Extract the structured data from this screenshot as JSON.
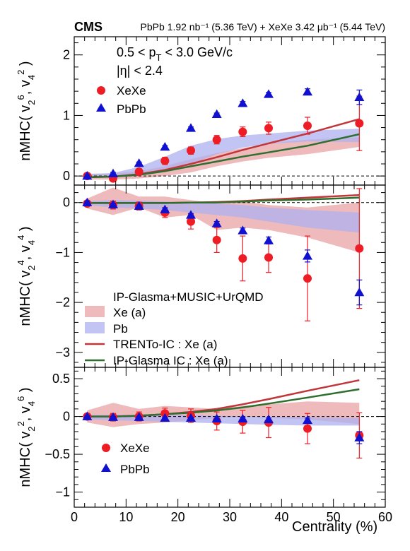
{
  "header": {
    "experiment": "CMS",
    "lumi": "PbPb 1.92 nb⁻¹ (5.36 TeV) + XeXe 3.42 μb⁻¹ (5.44 TeV)"
  },
  "colors": {
    "xexe_marker": "#ee1c24",
    "pbpb_marker": "#1010d0",
    "xe_band": "#e8a3a6",
    "pb_band": "#aeb0ef",
    "trento_line": "#c0363a",
    "glasma_line": "#2e6e2e"
  },
  "chart_data": [
    {
      "type": "scatter",
      "panel": "top",
      "ylabel": "nMHC( v₂⁶, v₄² )",
      "ylim": [
        -0.15,
        2.3
      ],
      "yticks": [
        0,
        1,
        2
      ],
      "annotations": [
        "0.5 < p_T < 3.0 GeV/c",
        "|η| < 2.4"
      ],
      "legend": [
        "XeXe",
        "PbPb"
      ],
      "series": [
        {
          "name": "XeXe",
          "marker": "circle",
          "x": [
            2.5,
            7.5,
            12.5,
            17.5,
            22.5,
            27.5,
            32.5,
            37.5,
            45,
            55
          ],
          "y": [
            0.0,
            -0.04,
            0.07,
            0.25,
            0.42,
            0.6,
            0.73,
            0.79,
            0.83,
            0.87
          ],
          "err": [
            0.03,
            0.04,
            0.05,
            0.06,
            0.06,
            0.07,
            0.08,
            0.1,
            0.14,
            0.45
          ]
        },
        {
          "name": "PbPb",
          "marker": "triangle",
          "x": [
            2.5,
            7.5,
            12.5,
            17.5,
            22.5,
            27.5,
            32.5,
            37.5,
            45,
            55
          ],
          "y": [
            0.0,
            0.04,
            0.21,
            0.48,
            0.79,
            1.02,
            1.2,
            1.35,
            1.39,
            1.3
          ],
          "err": [
            0.02,
            0.02,
            0.02,
            0.02,
            0.02,
            0.02,
            0.03,
            0.03,
            0.05,
            0.12
          ]
        },
        {
          "name": "Xe (a)",
          "kind": "band",
          "x": [
            2.5,
            7.5,
            12.5,
            17.5,
            22.5,
            27.5,
            32.5,
            37.5,
            45,
            55
          ],
          "lo": [
            -0.06,
            -0.06,
            -0.04,
            0.0,
            0.06,
            0.16,
            0.24,
            0.3,
            0.36,
            0.48
          ],
          "hi": [
            0.04,
            0.04,
            0.08,
            0.16,
            0.28,
            0.38,
            0.46,
            0.54,
            0.6,
            0.64
          ]
        },
        {
          "name": "Pb",
          "kind": "band",
          "x": [
            2.5,
            7.5,
            12.5,
            17.5,
            22.5,
            27.5,
            32.5,
            37.5,
            45,
            55
          ],
          "lo": [
            -0.02,
            -0.02,
            0.0,
            0.08,
            0.2,
            0.36,
            0.47,
            0.53,
            0.57,
            0.56
          ],
          "hi": [
            0.03,
            0.05,
            0.15,
            0.32,
            0.5,
            0.61,
            0.67,
            0.7,
            0.75,
            0.78
          ]
        },
        {
          "name": "TRENTo-IC : Xe (a)",
          "kind": "line",
          "x": [
            2.5,
            7.5,
            12.5,
            17.5,
            22.5,
            27.5,
            32.5,
            37.5,
            45,
            55
          ],
          "y": [
            -0.02,
            -0.01,
            0.03,
            0.1,
            0.2,
            0.31,
            0.43,
            0.54,
            0.7,
            0.94
          ]
        },
        {
          "name": "IP-Glasma IC : Xe (a)",
          "kind": "line",
          "x": [
            2.5,
            7.5,
            12.5,
            17.5,
            22.5,
            27.5,
            32.5,
            37.5,
            45,
            55
          ],
          "y": [
            -0.02,
            -0.01,
            0.02,
            0.08,
            0.16,
            0.24,
            0.32,
            0.39,
            0.5,
            0.69
          ]
        }
      ]
    },
    {
      "type": "scatter",
      "panel": "middle",
      "ylabel": "nMHC( v₂⁴, v₄⁴ )",
      "ylim": [
        -3.3,
        0.35
      ],
      "yticks": [
        -3,
        -2,
        -1,
        0
      ],
      "legend_header": "IP-Glasma+MUSIC+UrQMD",
      "legend": [
        "Xe (a)",
        "Pb",
        "TRENTo-IC : Xe (a)",
        "IP-Glasma IC : Xe (a)"
      ],
      "series": [
        {
          "name": "XeXe",
          "marker": "circle",
          "x": [
            2.5,
            7.5,
            12.5,
            17.5,
            22.5,
            27.5,
            32.5,
            37.5,
            45,
            55
          ],
          "y": [
            -0.02,
            -0.05,
            -0.07,
            -0.2,
            -0.38,
            -0.75,
            -1.12,
            -1.1,
            -1.52,
            -0.92
          ],
          "err": [
            0.05,
            0.08,
            0.08,
            0.1,
            0.15,
            0.25,
            0.45,
            0.3,
            0.85,
            1.2
          ]
        },
        {
          "name": "PbPb",
          "marker": "triangle",
          "x": [
            2.5,
            7.5,
            12.5,
            17.5,
            22.5,
            27.5,
            32.5,
            37.5,
            45,
            55
          ],
          "y": [
            0.0,
            -0.04,
            -0.07,
            -0.14,
            -0.25,
            -0.42,
            -0.56,
            -0.76,
            -1.07,
            -1.8
          ],
          "err": [
            0.02,
            0.02,
            0.02,
            0.03,
            0.03,
            0.04,
            0.05,
            0.07,
            0.12,
            0.25
          ]
        },
        {
          "name": "Xe (a)",
          "kind": "band",
          "x": [
            2.5,
            7.5,
            12.5,
            17.5,
            22.5,
            27.5,
            32.5,
            37.5,
            45,
            55
          ],
          "lo": [
            -0.12,
            -0.25,
            -0.1,
            -0.3,
            -0.25,
            -0.55,
            -0.5,
            -0.55,
            -0.7,
            -1.0
          ],
          "hi": [
            0.08,
            0.3,
            0.12,
            0.12,
            0.05,
            -0.02,
            0.02,
            -0.05,
            -0.1,
            0.0
          ]
        },
        {
          "name": "Pb",
          "kind": "band",
          "x": [
            2.5,
            7.5,
            12.5,
            17.5,
            22.5,
            27.5,
            32.5,
            37.5,
            45,
            55
          ],
          "lo": [
            -0.05,
            -0.1,
            -0.12,
            -0.15,
            -0.2,
            -0.25,
            -0.3,
            -0.38,
            -0.5,
            -0.6
          ],
          "hi": [
            0.03,
            0.05,
            0.04,
            0.02,
            0.0,
            -0.02,
            -0.05,
            -0.1,
            -0.15,
            -0.2
          ]
        },
        {
          "name": "TRENTo-IC : Xe (a)",
          "kind": "line",
          "x": [
            2.5,
            7.5,
            12.5,
            17.5,
            22.5,
            27.5,
            32.5,
            37.5,
            45,
            55
          ],
          "y": [
            -0.01,
            -0.01,
            -0.01,
            -0.01,
            0.0,
            0.01,
            0.03,
            0.06,
            0.1,
            0.15
          ]
        },
        {
          "name": "IP-Glasma IC : Xe (a)",
          "kind": "line",
          "x": [
            2.5,
            7.5,
            12.5,
            17.5,
            22.5,
            27.5,
            32.5,
            37.5,
            45,
            55
          ],
          "y": [
            -0.01,
            -0.01,
            -0.01,
            -0.01,
            0.0,
            0.0,
            0.02,
            0.04,
            0.06,
            0.1
          ]
        }
      ]
    },
    {
      "type": "scatter",
      "panel": "bottom",
      "ylabel": "nMHC( v₂², v₄⁶ )",
      "xlabel": "Centrality (%)",
      "xlim": [
        0,
        60
      ],
      "xticks": [
        0,
        10,
        20,
        30,
        40,
        50,
        60
      ],
      "ylim": [
        -1.2,
        0.65
      ],
      "yticks": [
        -1,
        -0.5,
        0,
        0.5
      ],
      "legend": [
        "XeXe",
        "PbPb"
      ],
      "series": [
        {
          "name": "XeXe",
          "marker": "circle",
          "x": [
            2.5,
            7.5,
            12.5,
            17.5,
            22.5,
            27.5,
            32.5,
            37.5,
            45,
            55
          ],
          "y": [
            0.0,
            -0.01,
            0.0,
            0.04,
            0.01,
            -0.06,
            -0.07,
            -0.08,
            -0.16,
            -0.25
          ],
          "err": [
            0.03,
            0.05,
            0.06,
            0.07,
            0.09,
            0.12,
            0.15,
            0.2,
            0.2,
            0.3
          ]
        },
        {
          "name": "PbPb",
          "marker": "triangle",
          "x": [
            2.5,
            7.5,
            12.5,
            17.5,
            22.5,
            27.5,
            32.5,
            37.5,
            45,
            55
          ],
          "y": [
            0.0,
            -0.01,
            -0.01,
            -0.02,
            -0.02,
            -0.03,
            -0.03,
            -0.04,
            -0.05,
            -0.28
          ],
          "err": [
            0.01,
            0.01,
            0.01,
            0.01,
            0.01,
            0.01,
            0.02,
            0.02,
            0.03,
            0.08
          ]
        },
        {
          "name": "Xe (a)",
          "kind": "band",
          "x": [
            2.5,
            7.5,
            12.5,
            17.5,
            22.5,
            27.5,
            32.5,
            37.5,
            45,
            55
          ],
          "lo": [
            -0.08,
            -0.14,
            -0.1,
            -0.08,
            -0.05,
            -0.02,
            0.0,
            -0.02,
            -0.04,
            -0.1
          ],
          "hi": [
            0.08,
            0.18,
            0.1,
            0.14,
            0.12,
            0.1,
            0.14,
            0.16,
            0.2,
            0.18
          ]
        },
        {
          "name": "Pb",
          "kind": "band",
          "x": [
            2.5,
            7.5,
            12.5,
            17.5,
            22.5,
            27.5,
            32.5,
            37.5,
            45,
            55
          ],
          "lo": [
            -0.04,
            -0.05,
            -0.06,
            -0.07,
            -0.08,
            -0.09,
            -0.1,
            -0.11,
            -0.12,
            -0.12
          ],
          "hi": [
            0.02,
            0.02,
            0.02,
            0.02,
            0.02,
            0.01,
            0.0,
            0.0,
            -0.01,
            -0.02
          ]
        },
        {
          "name": "TRENTo-IC : Xe (a)",
          "kind": "line",
          "x": [
            2.5,
            7.5,
            12.5,
            17.5,
            22.5,
            27.5,
            32.5,
            37.5,
            45,
            55
          ],
          "y": [
            0.0,
            0.0,
            0.01,
            0.03,
            0.06,
            0.1,
            0.16,
            0.23,
            0.34,
            0.48
          ]
        },
        {
          "name": "IP-Glasma IC : Xe (a)",
          "kind": "line",
          "x": [
            2.5,
            7.5,
            12.5,
            17.5,
            22.5,
            27.5,
            32.5,
            37.5,
            45,
            55
          ],
          "y": [
            0.0,
            0.0,
            0.01,
            0.03,
            0.05,
            0.08,
            0.12,
            0.17,
            0.25,
            0.36
          ]
        }
      ]
    }
  ]
}
